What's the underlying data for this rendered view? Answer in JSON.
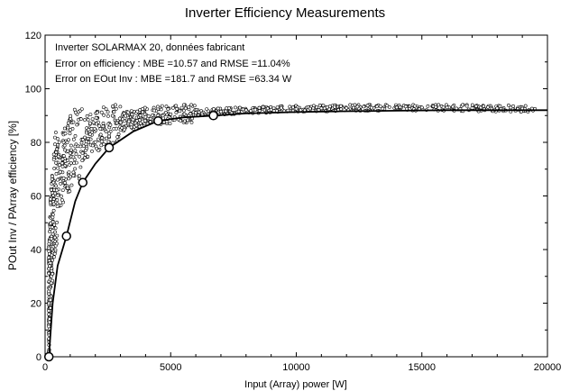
{
  "chart_data": {
    "type": "scatter",
    "title": "Inverter Efficiency Measurements",
    "xlabel": "Input  (Array)  power  [W]",
    "ylabel": "POut Inv / PArray  efficiency  [%]",
    "xlim": [
      0,
      20000
    ],
    "ylim": [
      0,
      120
    ],
    "xticks": [
      0,
      5000,
      10000,
      15000,
      20000
    ],
    "yticks": [
      0,
      20,
      40,
      60,
      80,
      100,
      120
    ],
    "grid": false,
    "annotations": [
      "Inverter  SOLARMAX 20, données fabricant",
      "Error on efficiency :  MBE =10.57 and  RMSE =11.04%",
      "Error on EOut Inv : MBE =181.7 and  RMSE =63.34  W"
    ],
    "series": [
      {
        "style": "line-with-circle-markers",
        "markers_x": [
          150,
          850,
          1500,
          2550,
          4500,
          6700
        ],
        "markers_y": [
          0,
          45,
          65,
          78,
          88,
          90
        ],
        "curve_x": [
          150,
          300,
          500,
          850,
          1200,
          1500,
          2000,
          2550,
          3500,
          4500,
          5500,
          6700,
          8000,
          10000,
          12000,
          14000,
          16000,
          18000,
          20000
        ],
        "curve_y": [
          0,
          20,
          34,
          45,
          58,
          65,
          72,
          78,
          84,
          88,
          89.3,
          90,
          90.8,
          91.3,
          91.6,
          91.8,
          92,
          92,
          92
        ]
      },
      {
        "style": "measured-points",
        "x": [
          150,
          200,
          250,
          300,
          350,
          400,
          500,
          600,
          700,
          800,
          1000,
          1200,
          1500,
          1800,
          2200,
          2600,
          3000,
          3500,
          4000,
          4500,
          5000,
          6000,
          7000,
          8000,
          9000,
          10000,
          11000,
          12000,
          13000,
          14000,
          15000,
          16000,
          17000,
          18000,
          19000,
          19500
        ],
        "y": [
          20,
          35,
          44,
          52,
          57,
          61,
          66,
          69,
          71,
          73,
          76,
          78.5,
          81,
          83,
          85,
          86.5,
          87.5,
          88.5,
          89.5,
          90,
          90.5,
          91,
          91.5,
          92,
          92.2,
          92.5,
          92.7,
          92.8,
          92.9,
          93,
          93,
          93,
          92.8,
          92.7,
          92.6,
          92.5
        ]
      }
    ]
  }
}
